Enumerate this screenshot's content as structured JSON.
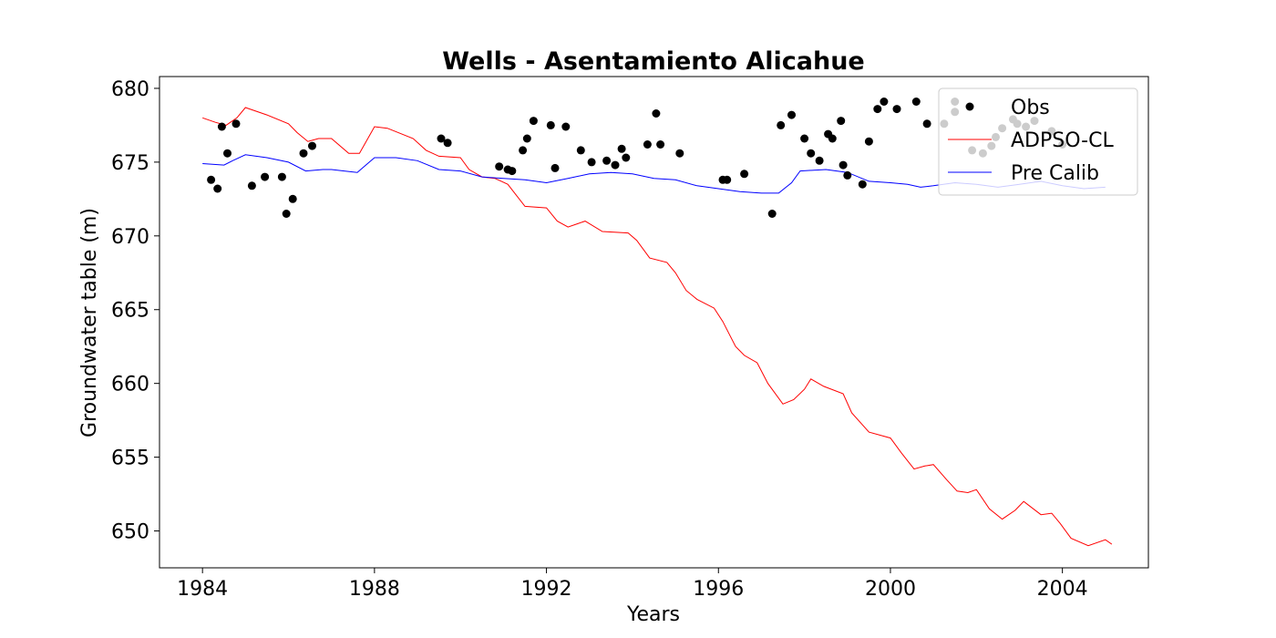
{
  "chart_data": {
    "type": "line",
    "title": "Wells - Asentamiento Alicahue",
    "xlabel": "Years",
    "ylabel": "Groundwater table (m)",
    "xlim": [
      1983.0,
      2006.0
    ],
    "ylim": [
      647.5,
      680.8
    ],
    "xticks": [
      1984,
      1988,
      1992,
      1996,
      2000,
      2004
    ],
    "yticks": [
      650,
      655,
      660,
      665,
      670,
      675,
      680
    ],
    "grid": false,
    "legend": "top-right",
    "series": [
      {
        "name": "Obs",
        "kind": "scatter",
        "color": "#000000",
        "points": [
          [
            1984.2,
            673.8
          ],
          [
            1984.35,
            673.2
          ],
          [
            1984.45,
            677.4
          ],
          [
            1984.58,
            675.6
          ],
          [
            1984.78,
            677.6
          ],
          [
            1985.15,
            673.4
          ],
          [
            1985.45,
            674.0
          ],
          [
            1985.85,
            674.0
          ],
          [
            1985.95,
            671.5
          ],
          [
            1986.1,
            672.5
          ],
          [
            1986.35,
            675.6
          ],
          [
            1986.55,
            676.1
          ],
          [
            1989.55,
            676.6
          ],
          [
            1989.7,
            676.3
          ],
          [
            1990.9,
            674.7
          ],
          [
            1991.1,
            674.5
          ],
          [
            1991.2,
            674.4
          ],
          [
            1991.45,
            675.8
          ],
          [
            1991.55,
            676.6
          ],
          [
            1991.7,
            677.8
          ],
          [
            1992.1,
            677.5
          ],
          [
            1992.2,
            674.6
          ],
          [
            1992.45,
            677.4
          ],
          [
            1992.8,
            675.8
          ],
          [
            1993.05,
            675.0
          ],
          [
            1993.4,
            675.1
          ],
          [
            1993.6,
            674.8
          ],
          [
            1993.75,
            675.9
          ],
          [
            1993.85,
            675.3
          ],
          [
            1994.35,
            676.2
          ],
          [
            1994.55,
            678.3
          ],
          [
            1994.65,
            676.2
          ],
          [
            1995.1,
            675.6
          ],
          [
            1996.1,
            673.8
          ],
          [
            1996.2,
            673.8
          ],
          [
            1996.6,
            674.2
          ],
          [
            1997.25,
            671.5
          ],
          [
            1997.45,
            677.5
          ],
          [
            1997.7,
            678.2
          ],
          [
            1998.0,
            676.6
          ],
          [
            1998.15,
            675.6
          ],
          [
            1998.35,
            675.1
          ],
          [
            1998.55,
            676.9
          ],
          [
            1998.65,
            676.6
          ],
          [
            1998.85,
            677.8
          ],
          [
            1998.9,
            674.8
          ],
          [
            1999.0,
            674.1
          ],
          [
            1999.35,
            673.5
          ],
          [
            1999.5,
            676.4
          ],
          [
            1999.7,
            678.6
          ],
          [
            1999.85,
            679.1
          ],
          [
            2000.15,
            678.6
          ],
          [
            2000.6,
            679.1
          ],
          [
            2000.85,
            677.6
          ],
          [
            2001.25,
            677.6
          ],
          [
            2001.5,
            679.1
          ],
          [
            2001.5,
            678.4
          ],
          [
            2001.9,
            675.8
          ],
          [
            2002.15,
            675.6
          ],
          [
            2002.35,
            676.1
          ],
          [
            2002.45,
            676.7
          ],
          [
            2002.6,
            677.3
          ],
          [
            2002.85,
            677.9
          ],
          [
            2002.95,
            677.6
          ],
          [
            2003.15,
            677.4
          ],
          [
            2003.35,
            677.8
          ],
          [
            2003.75,
            677.1
          ],
          [
            2004.0,
            676.2
          ]
        ]
      },
      {
        "name": "ADPSO-CL",
        "kind": "line",
        "color": "#ff0000",
        "points": [
          [
            1984.0,
            678.0
          ],
          [
            1984.3,
            677.7
          ],
          [
            1984.55,
            677.5
          ],
          [
            1984.8,
            678.0
          ],
          [
            1985.0,
            678.7
          ],
          [
            1985.5,
            678.2
          ],
          [
            1986.0,
            677.6
          ],
          [
            1986.2,
            677.0
          ],
          [
            1986.45,
            676.4
          ],
          [
            1986.7,
            676.6
          ],
          [
            1987.0,
            676.6
          ],
          [
            1987.4,
            675.6
          ],
          [
            1987.65,
            675.6
          ],
          [
            1988.0,
            677.4
          ],
          [
            1988.3,
            677.3
          ],
          [
            1988.9,
            676.6
          ],
          [
            1989.2,
            675.8
          ],
          [
            1989.5,
            675.4
          ],
          [
            1990.0,
            675.3
          ],
          [
            1990.2,
            674.5
          ],
          [
            1990.5,
            674.0
          ],
          [
            1990.8,
            673.9
          ],
          [
            1991.1,
            673.5
          ],
          [
            1991.5,
            672.0
          ],
          [
            1992.0,
            671.9
          ],
          [
            1992.25,
            671.0
          ],
          [
            1992.5,
            670.6
          ],
          [
            1992.9,
            671.0
          ],
          [
            1993.3,
            670.3
          ],
          [
            1993.9,
            670.2
          ],
          [
            1994.1,
            669.7
          ],
          [
            1994.4,
            668.5
          ],
          [
            1994.8,
            668.2
          ],
          [
            1995.0,
            667.5
          ],
          [
            1995.25,
            666.3
          ],
          [
            1995.5,
            665.7
          ],
          [
            1995.9,
            665.1
          ],
          [
            1996.1,
            664.2
          ],
          [
            1996.4,
            662.5
          ],
          [
            1996.6,
            661.9
          ],
          [
            1996.9,
            661.4
          ],
          [
            1997.15,
            660.0
          ],
          [
            1997.5,
            658.6
          ],
          [
            1997.75,
            658.9
          ],
          [
            1998.0,
            659.6
          ],
          [
            1998.15,
            660.3
          ],
          [
            1998.45,
            659.8
          ],
          [
            1998.9,
            659.3
          ],
          [
            1999.1,
            658.0
          ],
          [
            1999.5,
            656.7
          ],
          [
            2000.0,
            656.3
          ],
          [
            2000.25,
            655.3
          ],
          [
            2000.55,
            654.2
          ],
          [
            2000.8,
            654.4
          ],
          [
            2001.0,
            654.5
          ],
          [
            2001.3,
            653.5
          ],
          [
            2001.55,
            652.7
          ],
          [
            2001.8,
            652.6
          ],
          [
            2002.0,
            652.8
          ],
          [
            2002.3,
            651.5
          ],
          [
            2002.6,
            650.8
          ],
          [
            2002.9,
            651.4
          ],
          [
            2003.1,
            652.0
          ],
          [
            2003.5,
            651.1
          ],
          [
            2003.75,
            651.2
          ],
          [
            2003.95,
            650.5
          ],
          [
            2004.2,
            649.5
          ],
          [
            2004.6,
            649.0
          ],
          [
            2005.0,
            649.4
          ],
          [
            2005.15,
            649.1
          ]
        ]
      },
      {
        "name": "Pre Calib",
        "kind": "line",
        "color": "#0000ff",
        "points": [
          [
            1984.0,
            674.9
          ],
          [
            1984.5,
            674.8
          ],
          [
            1984.7,
            675.1
          ],
          [
            1985.0,
            675.5
          ],
          [
            1985.5,
            675.3
          ],
          [
            1986.0,
            675.0
          ],
          [
            1986.4,
            674.4
          ],
          [
            1986.8,
            674.5
          ],
          [
            1987.0,
            674.5
          ],
          [
            1987.6,
            674.3
          ],
          [
            1987.8,
            674.8
          ],
          [
            1988.0,
            675.3
          ],
          [
            1988.5,
            675.3
          ],
          [
            1989.0,
            675.1
          ],
          [
            1989.5,
            674.5
          ],
          [
            1990.0,
            674.4
          ],
          [
            1990.5,
            674.0
          ],
          [
            1991.0,
            673.9
          ],
          [
            1991.5,
            673.8
          ],
          [
            1992.0,
            673.6
          ],
          [
            1992.5,
            673.9
          ],
          [
            1993.0,
            674.2
          ],
          [
            1993.5,
            674.3
          ],
          [
            1994.0,
            674.2
          ],
          [
            1994.5,
            673.9
          ],
          [
            1995.0,
            673.8
          ],
          [
            1995.5,
            673.4
          ],
          [
            1996.0,
            673.2
          ],
          [
            1996.5,
            673.0
          ],
          [
            1997.0,
            672.9
          ],
          [
            1997.4,
            672.9
          ],
          [
            1997.7,
            673.6
          ],
          [
            1997.9,
            674.4
          ],
          [
            1998.5,
            674.5
          ],
          [
            1999.0,
            674.3
          ],
          [
            1999.5,
            673.7
          ],
          [
            2000.0,
            673.6
          ],
          [
            2000.4,
            673.5
          ],
          [
            2000.7,
            673.3
          ],
          [
            2001.0,
            673.4
          ],
          [
            2001.5,
            673.6
          ],
          [
            2002.0,
            673.5
          ],
          [
            2002.5,
            673.3
          ],
          [
            2003.0,
            673.5
          ],
          [
            2003.5,
            673.7
          ],
          [
            2004.0,
            673.4
          ],
          [
            2004.5,
            673.2
          ],
          [
            2005.0,
            673.3
          ]
        ]
      }
    ]
  }
}
